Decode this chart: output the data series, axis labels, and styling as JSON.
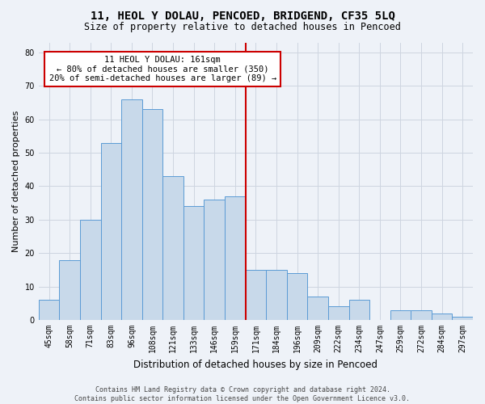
{
  "title": "11, HEOL Y DOLAU, PENCOED, BRIDGEND, CF35 5LQ",
  "subtitle": "Size of property relative to detached houses in Pencoed",
  "xlabel": "Distribution of detached houses by size in Pencoed",
  "ylabel": "Number of detached properties",
  "footer_line1": "Contains HM Land Registry data © Crown copyright and database right 2024.",
  "footer_line2": "Contains public sector information licensed under the Open Government Licence v3.0.",
  "bar_labels": [
    "45sqm",
    "58sqm",
    "71sqm",
    "83sqm",
    "96sqm",
    "108sqm",
    "121sqm",
    "133sqm",
    "146sqm",
    "159sqm",
    "171sqm",
    "184sqm",
    "196sqm",
    "209sqm",
    "222sqm",
    "234sqm",
    "247sqm",
    "259sqm",
    "272sqm",
    "284sqm",
    "297sqm"
  ],
  "bar_values": [
    6,
    18,
    30,
    53,
    66,
    63,
    43,
    34,
    36,
    37,
    15,
    15,
    14,
    7,
    4,
    6,
    0,
    3,
    3,
    2,
    1
  ],
  "bar_color": "#c8d9ea",
  "bar_edge_color": "#5b9bd5",
  "grid_color": "#cdd5e0",
  "background_color": "#eef2f8",
  "annotation_text": "11 HEOL Y DOLAU: 161sqm\n← 80% of detached houses are smaller (350)\n20% of semi-detached houses are larger (89) →",
  "vline_x_index": 9.5,
  "vline_color": "#cc0000",
  "annotation_box_facecolor": "#ffffff",
  "annotation_box_edgecolor": "#cc0000",
  "ylim": [
    0,
    83
  ],
  "yticks": [
    0,
    10,
    20,
    30,
    40,
    50,
    60,
    70,
    80
  ],
  "title_fontsize": 10,
  "subtitle_fontsize": 8.5,
  "ylabel_fontsize": 8,
  "xlabel_fontsize": 8.5,
  "tick_fontsize": 7,
  "footer_fontsize": 6
}
